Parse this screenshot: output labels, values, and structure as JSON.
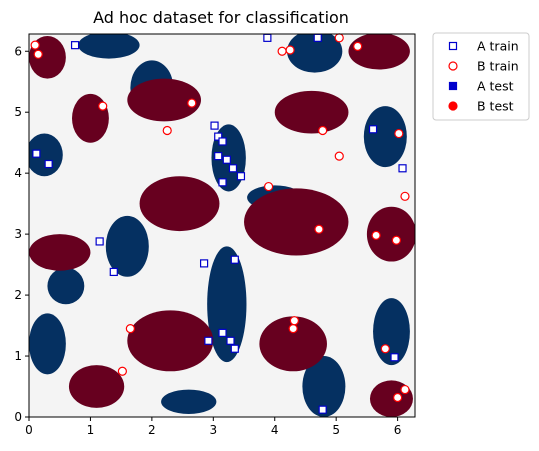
{
  "chart_data": {
    "type": "scatter",
    "title": "Ad hoc dataset for classification",
    "xlabel": "",
    "ylabel": "",
    "xlim": [
      0,
      6.283
    ],
    "ylim": [
      0,
      6.283
    ],
    "xticks": [
      "0",
      "1",
      "2",
      "3",
      "4",
      "5",
      "6"
    ],
    "yticks": [
      "0",
      "1",
      "2",
      "3",
      "4",
      "5",
      "6"
    ],
    "grid": false,
    "legend_position": "outside-upper-right",
    "background_colors": {
      "class_a": "#053061",
      "class_b": "#67001f",
      "neutral": "#f4f4f4"
    },
    "background_regions": {
      "class_a": [
        {
          "cx": 3.22,
          "cy": 1.85,
          "rx": 0.32,
          "ry": 0.95
        },
        {
          "cx": 3.25,
          "cy": 4.25,
          "rx": 0.28,
          "ry": 0.55
        },
        {
          "cx": 4.65,
          "cy": 6.0,
          "rx": 0.45,
          "ry": 0.35
        },
        {
          "cx": 1.3,
          "cy": 6.1,
          "rx": 0.5,
          "ry": 0.22
        },
        {
          "cx": 0.25,
          "cy": 4.3,
          "rx": 0.3,
          "ry": 0.35
        },
        {
          "cx": 1.6,
          "cy": 2.8,
          "rx": 0.35,
          "ry": 0.5
        },
        {
          "cx": 4.8,
          "cy": 0.5,
          "rx": 0.35,
          "ry": 0.5
        },
        {
          "cx": 0.3,
          "cy": 1.2,
          "rx": 0.3,
          "ry": 0.5
        },
        {
          "cx": 5.8,
          "cy": 4.6,
          "rx": 0.35,
          "ry": 0.5
        },
        {
          "cx": 5.9,
          "cy": 1.4,
          "rx": 0.3,
          "ry": 0.55
        },
        {
          "cx": 2.6,
          "cy": 0.25,
          "rx": 0.45,
          "ry": 0.2
        },
        {
          "cx": 0.6,
          "cy": 2.15,
          "rx": 0.3,
          "ry": 0.3
        },
        {
          "cx": 2.0,
          "cy": 5.4,
          "rx": 0.35,
          "ry": 0.45
        },
        {
          "cx": 4.0,
          "cy": 3.6,
          "rx": 0.45,
          "ry": 0.2
        }
      ],
      "class_b": [
        {
          "cx": 4.35,
          "cy": 3.2,
          "rx": 0.85,
          "ry": 0.55
        },
        {
          "cx": 2.45,
          "cy": 3.5,
          "rx": 0.65,
          "ry": 0.45
        },
        {
          "cx": 2.3,
          "cy": 1.25,
          "rx": 0.7,
          "ry": 0.5
        },
        {
          "cx": 4.3,
          "cy": 1.2,
          "rx": 0.55,
          "ry": 0.45
        },
        {
          "cx": 0.5,
          "cy": 2.7,
          "rx": 0.5,
          "ry": 0.3
        },
        {
          "cx": 5.9,
          "cy": 3.0,
          "rx": 0.4,
          "ry": 0.45
        },
        {
          "cx": 4.6,
          "cy": 5.0,
          "rx": 0.6,
          "ry": 0.35
        },
        {
          "cx": 2.2,
          "cy": 5.2,
          "rx": 0.6,
          "ry": 0.35
        },
        {
          "cx": 5.7,
          "cy": 6.0,
          "rx": 0.5,
          "ry": 0.3
        },
        {
          "cx": 0.3,
          "cy": 5.9,
          "rx": 0.3,
          "ry": 0.35
        },
        {
          "cx": 1.1,
          "cy": 0.5,
          "rx": 0.45,
          "ry": 0.35
        },
        {
          "cx": 5.9,
          "cy": 0.3,
          "rx": 0.35,
          "ry": 0.3
        },
        {
          "cx": 1.0,
          "cy": 4.9,
          "rx": 0.3,
          "ry": 0.4
        }
      ]
    },
    "series": [
      {
        "name": "A train",
        "marker": "square-open",
        "edge_color": "#0000cc",
        "face_color": "#ffffff",
        "points": [
          [
            0.75,
            6.1
          ],
          [
            3.88,
            6.22
          ],
          [
            4.7,
            6.22
          ],
          [
            0.12,
            4.32
          ],
          [
            0.32,
            4.15
          ],
          [
            3.02,
            4.78
          ],
          [
            3.08,
            4.6
          ],
          [
            3.15,
            4.52
          ],
          [
            3.08,
            4.28
          ],
          [
            3.22,
            4.22
          ],
          [
            3.32,
            4.08
          ],
          [
            3.45,
            3.95
          ],
          [
            3.15,
            3.85
          ],
          [
            1.15,
            2.88
          ],
          [
            1.38,
            2.38
          ],
          [
            2.85,
            2.52
          ],
          [
            3.35,
            2.58
          ],
          [
            3.15,
            1.38
          ],
          [
            2.92,
            1.25
          ],
          [
            3.28,
            1.25
          ],
          [
            3.35,
            1.12
          ],
          [
            4.78,
            0.12
          ],
          [
            5.6,
            4.72
          ],
          [
            6.08,
            4.08
          ],
          [
            5.95,
            0.98
          ]
        ]
      },
      {
        "name": "B train",
        "marker": "circle-open",
        "edge_color": "#ff0000",
        "face_color": "#ffffff",
        "points": [
          [
            0.1,
            6.1
          ],
          [
            0.15,
            5.95
          ],
          [
            4.12,
            6.0
          ],
          [
            4.25,
            6.02
          ],
          [
            5.05,
            6.22
          ],
          [
            5.35,
            6.08
          ],
          [
            1.2,
            5.1
          ],
          [
            2.65,
            5.15
          ],
          [
            2.25,
            4.7
          ],
          [
            4.78,
            4.7
          ],
          [
            5.05,
            4.28
          ],
          [
            6.02,
            4.65
          ],
          [
            3.9,
            3.78
          ],
          [
            4.72,
            3.08
          ],
          [
            5.65,
            2.98
          ],
          [
            5.98,
            2.9
          ],
          [
            6.12,
            3.62
          ],
          [
            1.65,
            1.45
          ],
          [
            4.3,
            1.45
          ],
          [
            4.32,
            1.58
          ],
          [
            5.8,
            1.12
          ],
          [
            1.52,
            0.75
          ],
          [
            6.0,
            0.32
          ],
          [
            6.12,
            0.45
          ]
        ]
      },
      {
        "name": "A test",
        "marker": "square-filled",
        "edge_color": "#0000cc",
        "face_color": "#0000cc",
        "points": []
      },
      {
        "name": "B test",
        "marker": "circle-filled",
        "edge_color": "#ff0000",
        "face_color": "#ff0000",
        "points": []
      }
    ]
  }
}
